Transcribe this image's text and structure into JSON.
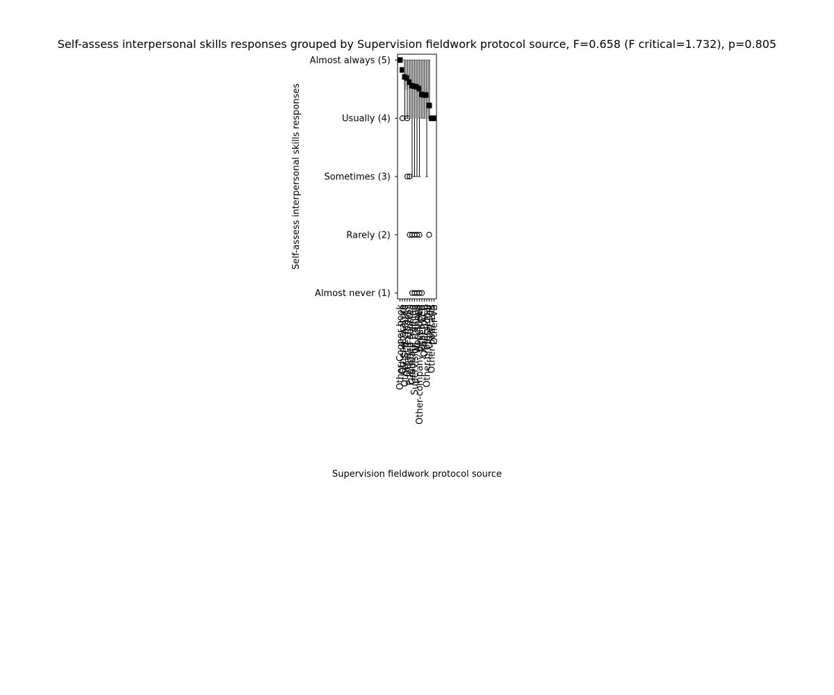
{
  "chart_data": {
    "type": "box",
    "title": "Self-assess interpersonal skills responses grouped by Supervision fieldwork protocol source, F=0.658 (F critical=1.732), p=0.805",
    "xlabel": "Supervision fieldwork protocol source",
    "ylabel": "Self-assess interpersonal skills responses",
    "ylim": [
      0.9,
      5.1
    ],
    "y_ticks": [
      {
        "value": 5,
        "label": "Almost always (5)"
      },
      {
        "value": 4,
        "label": "Usually (4)"
      },
      {
        "value": 3,
        "label": "Sometimes (3)"
      },
      {
        "value": 2,
        "label": "Rarely (2)"
      },
      {
        "value": 1,
        "label": "Almost never (1)"
      }
    ],
    "categories": [
      {
        "label": "Other-Cooper book",
        "mean": 5.0,
        "q1": 5.0,
        "median": 5.0,
        "q3": 5.0,
        "whisker_low": 5.0,
        "whisker_high": 5.0,
        "outliers": []
      },
      {
        "label": "Other-literature",
        "mean": 4.83,
        "q1": 5.0,
        "median": 5.0,
        "q3": 5.0,
        "whisker_low": 5.0,
        "whisker_high": 5.0,
        "outliers": [
          4
        ]
      },
      {
        "label": "Other-Self-created",
        "mean": 4.71,
        "q1": 4.5,
        "median": 5.0,
        "q3": 5.0,
        "whisker_low": 4.0,
        "whisker_high": 5.0,
        "outliers": []
      },
      {
        "label": "Other-Textbooks",
        "mean": 4.69,
        "q1": 4.5,
        "median": 5.0,
        "q3": 5.0,
        "whisker_low": 4.0,
        "whisker_high": 5.0,
        "outliers": [
          4,
          3
        ]
      },
      {
        "label": "Published sources",
        "mean": 4.62,
        "q1": 4.0,
        "median": 5.0,
        "q3": 5.0,
        "whisker_low": 4.0,
        "whisker_high": 5.0,
        "outliers": [
          3,
          2
        ]
      },
      {
        "label": "Graduate training",
        "mean": 4.56,
        "q1": 4.0,
        "median": 5.0,
        "q3": 5.0,
        "whisker_low": 3.0,
        "whisker_high": 5.0,
        "outliers": [
          2,
          1
        ]
      },
      {
        "label": "Supervision training",
        "mean": 4.55,
        "q1": 4.0,
        "median": 5.0,
        "q3": 5.0,
        "whisker_low": 3.0,
        "whisker_high": 5.0,
        "outliers": [
          2,
          1
        ]
      },
      {
        "label": "Workshops",
        "mean": 4.54,
        "q1": 4.0,
        "median": 5.0,
        "q3": 5.0,
        "whisker_low": 3.0,
        "whisker_high": 5.0,
        "outliers": [
          2,
          1
        ]
      },
      {
        "label": "Other-company developed",
        "mean": 4.51,
        "q1": 4.0,
        "median": 5.0,
        "q3": 5.0,
        "whisker_low": 3.0,
        "whisker_high": 5.0,
        "outliers": [
          2,
          1
        ]
      },
      {
        "label": "Other-CEU",
        "mean": 4.41,
        "q1": 4.0,
        "median": 4.5,
        "q3": 5.0,
        "whisker_low": 4.0,
        "whisker_high": 5.0,
        "outliers": [
          1
        ]
      },
      {
        "label": "Other-BACB",
        "mean": 4.4,
        "q1": 4.0,
        "median": 5.0,
        "q3": 5.0,
        "whisker_low": 4.0,
        "whisker_high": 5.0,
        "outliers": []
      },
      {
        "label": "Other-professional",
        "mean": 4.4,
        "q1": 4.0,
        "median": 4.5,
        "q3": 5.0,
        "whisker_low": 3.0,
        "whisker_high": 5.0,
        "outliers": []
      },
      {
        "label": "Other-self",
        "mean": 4.22,
        "q1": 4.0,
        "median": 4.0,
        "q3": 5.0,
        "whisker_low": 4.0,
        "whisker_high": 5.0,
        "outliers": [
          2
        ]
      },
      {
        "label": "Other-podcasts",
        "mean": 4.0,
        "q1": 4.0,
        "median": 4.0,
        "q3": 4.0,
        "whisker_low": 4.0,
        "whisker_high": 4.0,
        "outliers": []
      },
      {
        "label": "Other-VB",
        "mean": 4.0,
        "q1": 4.0,
        "median": 4.0,
        "q3": 4.0,
        "whisker_low": 4.0,
        "whisker_high": 4.0,
        "outliers": []
      }
    ],
    "grid": false,
    "legend": "none",
    "colors": {
      "box": "#808080",
      "mean_marker": "#000000",
      "outlier": "#000000",
      "whisker": "#000000"
    }
  }
}
